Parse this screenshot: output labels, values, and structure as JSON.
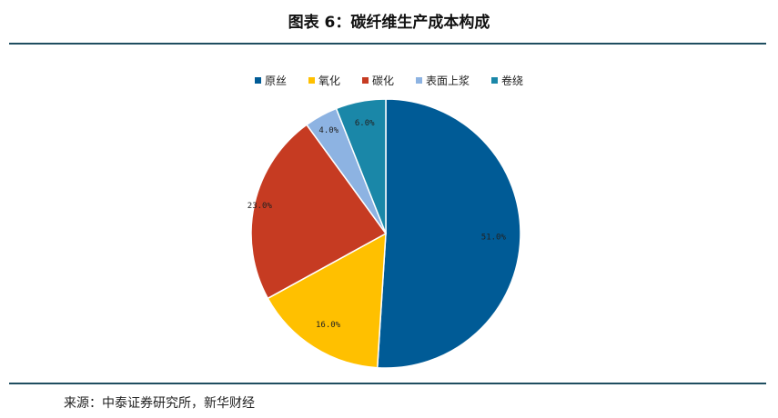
{
  "title": "图表 6：碳纤维生产成本构成",
  "source": "来源：中泰证券研究所，新华财经",
  "chart_data": {
    "type": "pie",
    "title": "图表 6：碳纤维生产成本构成",
    "legend_position": "top",
    "slices": [
      {
        "name": "原丝",
        "value": 51.0,
        "label": "51.0%",
        "color": "#005b96"
      },
      {
        "name": "氧化",
        "value": 16.0,
        "label": "16.0%",
        "color": "#ffc000"
      },
      {
        "name": "碳化",
        "value": 23.0,
        "label": "23.0%",
        "color": "#c63b22"
      },
      {
        "name": "表面上浆",
        "value": 4.0,
        "label": "4.0%",
        "color": "#8db3e2"
      },
      {
        "name": "卷绕",
        "value": 6.0,
        "label": "6.0%",
        "color": "#1a87a8"
      }
    ]
  }
}
